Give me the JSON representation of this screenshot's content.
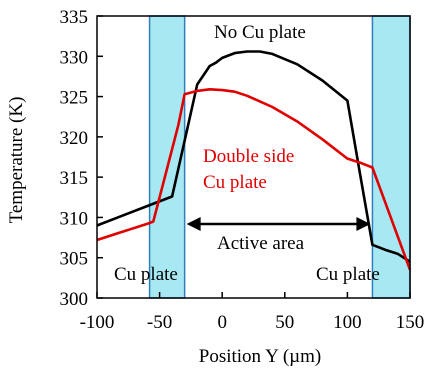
{
  "chart_data": {
    "type": "line",
    "xlabel": "Position Y (µm)",
    "ylabel": "Temperature (K)",
    "xlim": [
      -100,
      150
    ],
    "ylim": [
      300,
      335
    ],
    "x_ticks": [
      "-100",
      "-50",
      "0",
      "50",
      "100",
      "150"
    ],
    "y_ticks": [
      "300",
      "305",
      "310",
      "315",
      "320",
      "325",
      "330",
      "335"
    ],
    "grid": false,
    "shaded_regions": [
      {
        "label": "Cu plate",
        "x_range": [
          -58,
          -30
        ],
        "color": "#a8e8f2"
      },
      {
        "label": "Cu plate",
        "x_range": [
          120,
          150
        ],
        "color": "#a8e8f2"
      }
    ],
    "series": [
      {
        "name": "No Cu plate",
        "color": "#000000",
        "x": [
          -100,
          -80,
          -60,
          -40,
          -30,
          -20,
          -10,
          -5,
          0,
          10,
          20,
          30,
          40,
          60,
          80,
          100,
          110,
          120,
          130,
          140,
          150
        ],
        "y": [
          309.0,
          310.2,
          311.4,
          312.6,
          319.5,
          326.5,
          328.8,
          329.2,
          329.8,
          330.4,
          330.6,
          330.6,
          330.3,
          329.0,
          327.0,
          324.5,
          315.5,
          306.6,
          306.0,
          305.5,
          304.5
        ]
      },
      {
        "name": "Double side Cu plate",
        "color": "#e00000",
        "x": [
          -100,
          -80,
          -60,
          -55,
          -45,
          -35,
          -30,
          -20,
          -10,
          0,
          10,
          20,
          40,
          60,
          80,
          100,
          110,
          120,
          150
        ],
        "y": [
          307.2,
          308.2,
          309.2,
          309.5,
          315.5,
          321.5,
          325.3,
          325.7,
          325.9,
          325.8,
          325.6,
          325.1,
          323.7,
          321.9,
          319.7,
          317.3,
          316.8,
          316.2,
          303.5
        ]
      }
    ],
    "annotations": [
      {
        "text": "No Cu plate",
        "color": "#000000"
      },
      {
        "text": "Double side",
        "color": "#e00000"
      },
      {
        "text": "Cu plate",
        "color": "#e00000"
      },
      {
        "text": "Active area",
        "color": "#000000",
        "arrow_x_range": [
          -30,
          120
        ]
      },
      {
        "text": "Cu plate",
        "color": "#000000"
      },
      {
        "text": "Cu plate",
        "color": "#000000"
      }
    ]
  }
}
